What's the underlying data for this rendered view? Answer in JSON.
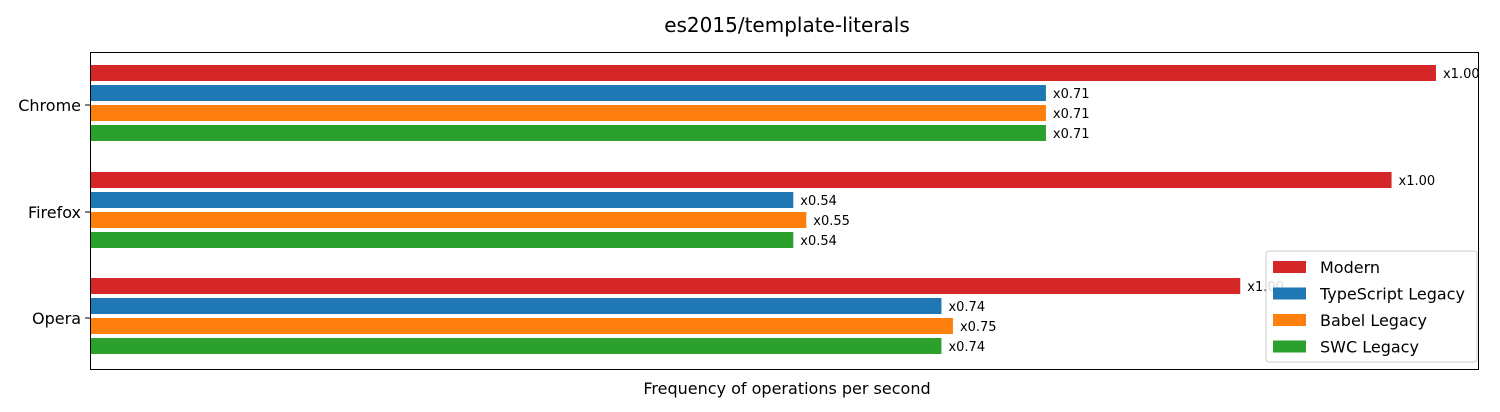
{
  "chart_data": {
    "type": "bar",
    "orientation": "horizontal",
    "title": "es2015/template-literals",
    "xlabel": "Frequency of operations per second",
    "ylabel": "",
    "categories": [
      "Chrome",
      "Firefox",
      "Opera"
    ],
    "series": [
      {
        "name": "Modern",
        "color": "#d62728",
        "values": [
          1.0,
          1.0,
          1.0
        ],
        "labels": [
          "x1.00",
          "x1.00",
          "x1.00"
        ]
      },
      {
        "name": "TypeScript Legacy",
        "color": "#1f77b4",
        "values": [
          0.71,
          0.54,
          0.74
        ],
        "labels": [
          "x0.71",
          "x0.54",
          "x0.74"
        ]
      },
      {
        "name": "Babel Legacy",
        "color": "#ff7f0e",
        "values": [
          0.71,
          0.55,
          0.75
        ],
        "labels": [
          "x0.71",
          "x0.55",
          "x0.75"
        ]
      },
      {
        "name": "SWC Legacy",
        "color": "#2ca02c",
        "values": [
          0.71,
          0.54,
          0.74
        ],
        "labels": [
          "x0.71",
          "x0.54",
          "x0.74"
        ]
      }
    ],
    "absolute_max_ratio": [
      0.969,
      0.937,
      0.828
    ],
    "legend": "lower-right",
    "grid": false,
    "x_ticks_visible": false
  }
}
